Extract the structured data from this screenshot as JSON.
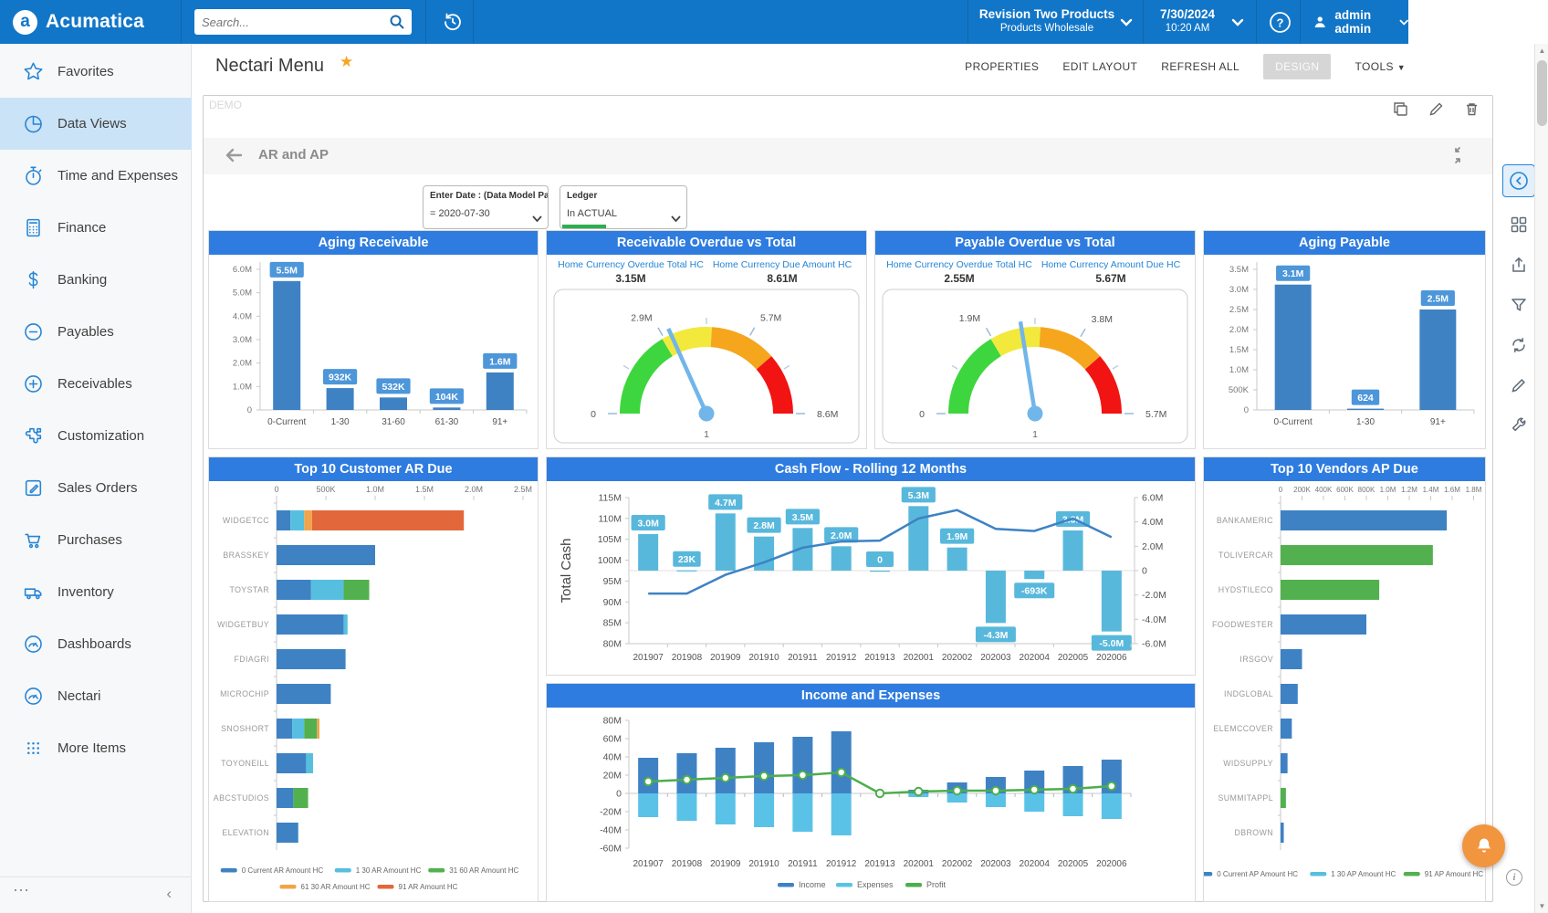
{
  "theme": {
    "topbar_blue": "#1276c8",
    "title_blue": "#2e7cdf",
    "bar_blue": "#3e82c4",
    "bar_lightblue": "#56bfe0",
    "bar_green": "#52b14e",
    "bar_orange": "#f0a44c",
    "bar_red": "#e2683b",
    "accent": "#2585d5",
    "gauge_green": "#3ed63e",
    "gauge_yellow": "#f2e93c",
    "gauge_orange": "#f5a61d",
    "gauge_red": "#f21313",
    "bell_orange": "#f2953f"
  },
  "topbar": {
    "logo": "Acumatica",
    "search_placeholder": "Search...",
    "company": "Revision Two Products",
    "company_sub": "Products Wholesale",
    "date": "7/30/2024",
    "time": "10:20 AM",
    "user": "admin admin"
  },
  "menubar": {
    "title": "Nectari Menu",
    "actions": [
      "PROPERTIES",
      "EDIT LAYOUT",
      "REFRESH ALL",
      "DESIGN",
      "TOOLS"
    ]
  },
  "sidebar": {
    "items": [
      {
        "label": "Favorites",
        "icon": "star",
        "active": false
      },
      {
        "label": "Data Views",
        "icon": "pie",
        "active": true
      },
      {
        "label": "Time and Expenses",
        "icon": "stopwatch",
        "active": false
      },
      {
        "label": "Finance",
        "icon": "calculator",
        "active": false
      },
      {
        "label": "Banking",
        "icon": "dollar",
        "active": false
      },
      {
        "label": "Payables",
        "icon": "circle-minus",
        "active": false
      },
      {
        "label": "Receivables",
        "icon": "circle-plus",
        "active": false
      },
      {
        "label": "Customization",
        "icon": "puzzle",
        "active": false
      },
      {
        "label": "Sales Orders",
        "icon": "pencil-square",
        "active": false
      },
      {
        "label": "Purchases",
        "icon": "cart",
        "active": false
      },
      {
        "label": "Inventory",
        "icon": "truck",
        "active": false
      },
      {
        "label": "Dashboards",
        "icon": "gauge",
        "active": false
      },
      {
        "label": "Nectari",
        "icon": "gauge",
        "active": false
      },
      {
        "label": "More Items",
        "icon": "dots-grid",
        "active": false
      }
    ]
  },
  "panel": {
    "demo_label": "DEMO",
    "breadcrumb": "AR and AP",
    "filters": [
      {
        "label": "Enter Date : (Data Model Pa...",
        "value": "= 2020-07-30"
      },
      {
        "label": "Ledger",
        "value": "In  ACTUAL"
      }
    ]
  },
  "chart_data": [
    {
      "id": "aging_receivable",
      "type": "bar",
      "title": "Aging Receivable",
      "categories": [
        "0-Current",
        "1-30",
        "31-60",
        "61-30",
        "91+"
      ],
      "values": [
        5500000,
        932000,
        532000,
        104000,
        1600000
      ],
      "labels": [
        "5.5M",
        "932K",
        "532K",
        "104K",
        "1.6M"
      ],
      "ylim": [
        0,
        6000000
      ],
      "yticks": [
        "0",
        "1.0M",
        "2.0M",
        "3.0M",
        "4.0M",
        "5.0M",
        "6.0M"
      ]
    },
    {
      "id": "receivable_overdue_gauge",
      "type": "gauge",
      "title": "Receivable Overdue vs Total",
      "stats": [
        {
          "label": "Home Currency Overdue Total HC",
          "value": "3.15M"
        },
        {
          "label": "Home Currency Due Amount HC",
          "value": "8.61M"
        }
      ],
      "min": 0,
      "max": 8610000,
      "value": 3150000,
      "tick_labels": [
        "0",
        "2.9M",
        "5.7M",
        "8.6M"
      ],
      "footer": "1"
    },
    {
      "id": "payable_overdue_gauge",
      "type": "gauge",
      "title": "Payable Overdue vs Total",
      "stats": [
        {
          "label": "Home Currency Overdue Total HC",
          "value": "2.55M"
        },
        {
          "label": "Home Currency Amount Due HC",
          "value": "5.67M"
        }
      ],
      "min": 0,
      "max": 5670000,
      "value": 2550000,
      "tick_labels": [
        "0",
        "1.9M",
        "3.8M",
        "5.7M"
      ],
      "footer": "1"
    },
    {
      "id": "aging_payable",
      "type": "bar",
      "title": "Aging Payable",
      "categories": [
        "0-Current",
        "1-30",
        "91+"
      ],
      "values": [
        3120000,
        624,
        2500000
      ],
      "labels": [
        "3.1M",
        "624",
        "2.5M"
      ],
      "ylim": [
        0,
        3500000
      ],
      "yticks": [
        "0",
        "500K",
        "1.0M",
        "1.5M",
        "2.0M",
        "2.5M",
        "3.0M",
        "3.5M"
      ]
    },
    {
      "id": "top10_customer_ar_due",
      "type": "stacked_bar_h",
      "title": "Top 10 Customer AR Due",
      "xticks": [
        "0",
        "500K",
        "1.0M",
        "1.5M",
        "2.0M",
        "2.5M"
      ],
      "xlim": [
        0,
        2500000
      ],
      "series_keys": [
        {
          "key": "current",
          "label": "0 Current AR Amount HC",
          "color": "#3e82c4"
        },
        {
          "key": "d1_30",
          "label": "1 30 AR Amount HC",
          "color": "#56bfe0"
        },
        {
          "key": "d31_60",
          "label": "31 60 AR Amount HC",
          "color": "#52b14e"
        },
        {
          "key": "d61_30",
          "label": "61 30 AR Amount HC",
          "color": "#f0a44c"
        },
        {
          "key": "d91",
          "label": "91  AR Amount HC",
          "color": "#e2683b"
        }
      ],
      "rows": [
        {
          "name": "WIDGETCC",
          "segments": [
            [
              "current",
              140000
            ],
            [
              "d1_30",
              140000
            ],
            [
              "d61_30",
              80000
            ],
            [
              "d91",
              1540000
            ]
          ]
        },
        {
          "name": "BRASSKEY",
          "segments": [
            [
              "current",
              1000000
            ]
          ]
        },
        {
          "name": "TOYSTAR",
          "segments": [
            [
              "current",
              350000
            ],
            [
              "d1_30",
              330000
            ],
            [
              "d31_60",
              260000
            ]
          ]
        },
        {
          "name": "WIDGETBUY",
          "segments": [
            [
              "current",
              680000
            ],
            [
              "d1_30",
              40000
            ]
          ]
        },
        {
          "name": "FDIAGRI",
          "segments": [
            [
              "current",
              700000
            ]
          ]
        },
        {
          "name": "MICROCHIP",
          "segments": [
            [
              "current",
              550000
            ]
          ]
        },
        {
          "name": "SNOSHORT",
          "segments": [
            [
              "current",
              160000
            ],
            [
              "d1_30",
              120000
            ],
            [
              "d31_60",
              130000
            ],
            [
              "d61_30",
              25000
            ]
          ]
        },
        {
          "name": "TOYONEILL",
          "segments": [
            [
              "current",
              300000
            ],
            [
              "d1_30",
              70000
            ]
          ]
        },
        {
          "name": "ABCSTUDIOS",
          "segments": [
            [
              "current",
              170000
            ],
            [
              "d31_60",
              150000
            ]
          ]
        },
        {
          "name": "ELEVATION",
          "segments": [
            [
              "current",
              220000
            ]
          ]
        }
      ]
    },
    {
      "id": "cash_flow_rolling_12_months",
      "type": "combo",
      "title": "Cash Flow - Rolling 12 Months",
      "categories": [
        "201907",
        "201908",
        "201909",
        "201910",
        "201911",
        "201912",
        "201913",
        "202001",
        "202002",
        "202003",
        "202004",
        "202005",
        "202006"
      ],
      "bar_values_m": [
        3.0,
        0.023,
        4.7,
        2.8,
        3.5,
        2.0,
        0,
        5.3,
        1.9,
        -4.3,
        -0.693,
        3.3,
        -5.0
      ],
      "bar_labels": [
        "3.0M",
        "23K",
        "4.7M",
        "2.8M",
        "3.5M",
        "2.0M",
        "0",
        "5.3M",
        "1.9M",
        "-4.3M",
        "-693K",
        "3.3M",
        "-5.0M"
      ],
      "line_values_m": [
        92,
        92,
        96.5,
        99.5,
        103,
        104.5,
        104.7,
        110,
        112,
        107.5,
        107,
        110,
        105.5
      ],
      "ylabel_left": "Total Cash",
      "left_ticks": [
        "115M",
        "110M",
        "105M",
        "100M",
        "95M",
        "90M",
        "85M",
        "80M"
      ],
      "left_range_m": [
        80,
        115
      ],
      "right_ticks": [
        "6.0M",
        "4.0M",
        "2.0M",
        "0",
        "-2.0M",
        "-4.0M",
        "-6.0M"
      ],
      "right_range_m": [
        -6,
        6
      ]
    },
    {
      "id": "income_and_expenses",
      "type": "combo",
      "title": "Income and Expenses",
      "categories": [
        "201907",
        "201908",
        "201909",
        "201910",
        "201911",
        "201912",
        "201913",
        "202001",
        "202002",
        "202003",
        "202004",
        "202005",
        "202006"
      ],
      "income_m": [
        39,
        44,
        50,
        56,
        62,
        68,
        0,
        4,
        12,
        18,
        25,
        30,
        37
      ],
      "expenses_m": [
        -26,
        -30,
        -34,
        -37,
        -42,
        -46,
        0,
        -4,
        -10,
        -15,
        -20,
        -25,
        -28
      ],
      "profit_m": [
        13,
        15,
        17,
        19,
        20,
        23,
        0,
        2,
        3,
        3,
        4,
        5,
        8
      ],
      "yticks": [
        "80M",
        "60M",
        "40M",
        "20M",
        "0",
        "-20M",
        "-40M",
        "-60M"
      ],
      "ylim_m": [
        -60,
        80
      ],
      "legend": [
        {
          "label": "Income",
          "color": "#3e82c4"
        },
        {
          "label": "Expenses",
          "color": "#5bc2e7"
        },
        {
          "label": "Profit",
          "color": "#4cae4c"
        }
      ]
    },
    {
      "id": "top10_vendors_ap_due",
      "type": "bar_h",
      "title": "Top 10 Vendors AP Due",
      "xticks": [
        "0",
        "200K",
        "400K",
        "600K",
        "800K",
        "1.0M",
        "1.2M",
        "1.4M",
        "1.6M",
        "1.8M"
      ],
      "xlim": [
        0,
        1800000
      ],
      "series_keys": [
        {
          "key": "current",
          "label": "0 Current AP Amount HC",
          "color": "#3e82c4"
        },
        {
          "key": "d1_30",
          "label": "1 30 AP Amount HC",
          "color": "#56bfe0"
        },
        {
          "key": "d91",
          "label": "91  AP Amount HC",
          "color": "#52b14e"
        }
      ],
      "rows": [
        {
          "name": "BANKAMERIC",
          "segments": [
            [
              "current",
              1550000
            ]
          ]
        },
        {
          "name": "TOLIVERCAR",
          "segments": [
            [
              "d91",
              1420000
            ]
          ]
        },
        {
          "name": "HYDSTILECO",
          "segments": [
            [
              "d91",
              920000
            ]
          ]
        },
        {
          "name": "FOODWESTER",
          "segments": [
            [
              "current",
              800000
            ]
          ]
        },
        {
          "name": "IRSGOV",
          "segments": [
            [
              "current",
              200000
            ]
          ]
        },
        {
          "name": "INDGLOBAL",
          "segments": [
            [
              "current",
              160000
            ]
          ]
        },
        {
          "name": "ELEMCCOVER",
          "segments": [
            [
              "current",
              105000
            ]
          ]
        },
        {
          "name": "WIDSUPPLY",
          "segments": [
            [
              "current",
              65000
            ]
          ]
        },
        {
          "name": "SUMMITAPPL",
          "segments": [
            [
              "d91",
              50000
            ]
          ]
        },
        {
          "name": "DBROWN",
          "segments": [
            [
              "current",
              30000
            ]
          ]
        }
      ]
    }
  ]
}
